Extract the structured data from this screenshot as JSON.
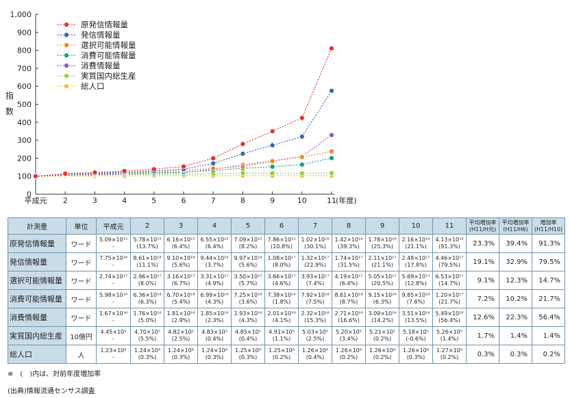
{
  "colors": {
    "header_bg": "#c9dde9",
    "border": "#6f93a8",
    "series": [
      "#e0362c",
      "#3f65b3",
      "#e68a2e",
      "#1f9e7a",
      "#8e5bb5",
      "#9fcf3a",
      "#e8c53a"
    ]
  },
  "chart_data": {
    "type": "line",
    "ylabel": "指数",
    "x_unit": "(年度)",
    "categories": [
      "平成元",
      "2",
      "3",
      "4",
      "5",
      "6",
      "7",
      "8",
      "9",
      "10",
      "11"
    ],
    "ylim": [
      0,
      1000
    ],
    "yticks": [
      "0",
      "100",
      "200",
      "300",
      "400",
      "500",
      "600",
      "700",
      "800",
      "900",
      "1,000"
    ],
    "grid": false,
    "legend_position": "top-left",
    "series": [
      {
        "name": "原発信情報量",
        "color": "#e0362c",
        "values": [
          100,
          114,
          121,
          129,
          139,
          154,
          200,
          279,
          350,
          424,
          811
        ]
      },
      {
        "name": "発信情報量",
        "color": "#3f65b3",
        "values": [
          100,
          111,
          117,
          122,
          129,
          139,
          171,
          225,
          272,
          320,
          575
        ]
      },
      {
        "name": "選択可能情報量",
        "color": "#e68a2e",
        "values": [
          100,
          108,
          115,
          121,
          128,
          134,
          143,
          153,
          184,
          207,
          238
        ]
      },
      {
        "name": "消費可能情報量",
        "color": "#1f9e7a",
        "values": [
          100,
          106,
          112,
          117,
          121,
          124,
          132,
          144,
          153,
          165,
          201
        ]
      },
      {
        "name": "消費情報量",
        "color": "#8e5bb5",
        "values": [
          100,
          105,
          108,
          111,
          116,
          120,
          139,
          162,
          185,
          210,
          329
        ]
      },
      {
        "name": "実質国内総生産",
        "color": "#9fcf3a",
        "values": [
          100,
          106,
          108,
          109,
          109,
          110,
          113,
          117,
          117,
          116,
          118
        ]
      },
      {
        "name": "総人口",
        "color": "#e8c53a",
        "values": [
          100,
          100,
          101,
          101,
          102,
          102,
          102,
          103,
          103,
          103,
          103
        ]
      }
    ]
  },
  "table": {
    "headers": [
      "計測量",
      "単位",
      "平成元",
      "2",
      "3",
      "4",
      "5",
      "6",
      "7",
      "8",
      "9",
      "10",
      "11"
    ],
    "rate_headers": [
      {
        "line1": "平均増加率",
        "line2": "(H11/H元)"
      },
      {
        "line1": "平均増加率",
        "line2": "(H11/H6)"
      },
      {
        "line1": "増加率",
        "line2": "(H11/H10)"
      }
    ],
    "rows": [
      {
        "label": "原発信情報量",
        "unit": "ワード",
        "cells": [
          [
            "5.09×10¹⁵",
            "-"
          ],
          [
            "5.78×10¹⁵",
            "(13.7%)"
          ],
          [
            "6.16×10¹⁵",
            "(6.4%)"
          ],
          [
            "6.55×10¹⁵",
            "(6.4%)"
          ],
          [
            "7.09×10¹⁵",
            "(8.2%)"
          ],
          [
            "7.86×10¹⁵",
            "(10.8%)"
          ],
          [
            "1.02×10¹⁶",
            "(30.1%)"
          ],
          [
            "1.42×10¹⁶",
            "(39.3%)"
          ],
          [
            "1.78×10¹⁶",
            "(25.3%)"
          ],
          [
            "2.16×10¹⁶",
            "(21.1%)"
          ],
          [
            "4.13×10¹⁶",
            "(91.3%)"
          ]
        ],
        "rates": [
          "23.3%",
          "39.4%",
          "91.3%"
        ]
      },
      {
        "label": "発信情報量",
        "unit": "ワード",
        "cells": [
          [
            "7.75×10¹⁶",
            "-"
          ],
          [
            "8.61×10¹⁶",
            "(11.1%)"
          ],
          [
            "9.10×10¹⁶",
            "(5.6%)"
          ],
          [
            "9.44×10¹⁶",
            "(3.7%)"
          ],
          [
            "9.97×10¹⁶",
            "(5.6%)"
          ],
          [
            "1.08×10¹⁷",
            "(8.0%)"
          ],
          [
            "1.32×10¹⁷",
            "(22.9%)"
          ],
          [
            "1.74×10¹⁷",
            "(31.5%)"
          ],
          [
            "2.11×10¹⁷",
            "(21.1%)"
          ],
          [
            "2.48×10¹⁷",
            "(17.8%)"
          ],
          [
            "4.46×10¹⁷",
            "(79.5%)"
          ]
        ],
        "rates": [
          "19.1%",
          "32.9%",
          "79.5%"
        ]
      },
      {
        "label": "選択可能情報量",
        "unit": "ワード",
        "cells": [
          [
            "2.74×10¹⁷",
            "-"
          ],
          [
            "2.96×10¹⁷",
            "(8.0%)"
          ],
          [
            "3.16×10¹⁷",
            "(6.7%)"
          ],
          [
            "3.31×10¹⁷",
            "(4.9%)"
          ],
          [
            "3.50×10¹⁷",
            "(5.7%)"
          ],
          [
            "3.66×10¹⁷",
            "(4.6%)"
          ],
          [
            "3.93×10¹⁷",
            "(7.4%)"
          ],
          [
            "4.19×10¹⁷",
            "(6.4%)"
          ],
          [
            "5.05×10¹⁷",
            "(20.5%)"
          ],
          [
            "5.69×10¹⁷",
            "(12.8%)"
          ],
          [
            "6.53×10¹⁷",
            "(14.7%)"
          ]
        ],
        "rates": [
          "9.1%",
          "12.3%",
          "14.7%"
        ]
      },
      {
        "label": "消費可能情報量",
        "unit": "ワード",
        "cells": [
          [
            "5.98×10¹⁶",
            "-"
          ],
          [
            "6.36×10¹⁶",
            "(6.3%)"
          ],
          [
            "6.70×10¹⁶",
            "(5.4%)"
          ],
          [
            "6.99×10¹⁶",
            "(4.3%)"
          ],
          [
            "7.25×10¹⁶",
            "(3.6%)"
          ],
          [
            "7.38×10¹⁶",
            "(1.8%)"
          ],
          [
            "7.92×10¹⁶",
            "(7.5%)"
          ],
          [
            "8.61×10¹⁶",
            "(8.7%)"
          ],
          [
            "9.15×10¹⁶",
            "(6.3%)"
          ],
          [
            "9.85×10¹⁶",
            "(7.6%)"
          ],
          [
            "1.20×10¹⁷",
            "(21.7%)"
          ]
        ],
        "rates": [
          "7.2%",
          "10.2%",
          "21.7%"
        ]
      },
      {
        "label": "消費情報量",
        "unit": "ワード",
        "cells": [
          [
            "1.67×10¹⁶",
            "-"
          ],
          [
            "1.76×10¹⁶",
            "(5.0%)"
          ],
          [
            "1.81×10¹⁶",
            "(2.9%)"
          ],
          [
            "1.85×10¹⁶",
            "(2.3%)"
          ],
          [
            "1.93×10¹⁶",
            "(4.3%)"
          ],
          [
            "2.01×10¹⁶",
            "(4.1%)"
          ],
          [
            "2.32×10¹⁶",
            "(15.3%)"
          ],
          [
            "2.71×10¹⁶",
            "(16.6%)"
          ],
          [
            "3.09×10¹⁶",
            "(14.2%)"
          ],
          [
            "3.51×10¹⁶",
            "(13.5%)"
          ],
          [
            "5.49×10¹⁶",
            "(56.4%)"
          ]
        ],
        "rates": [
          "12.6%",
          "22.3%",
          "56.4%"
        ]
      },
      {
        "label": "実質国内総生産",
        "unit": "10億円",
        "cells": [
          [
            "4.45×10⁵",
            "-"
          ],
          [
            "4.70×10⁵",
            "(5.5%)"
          ],
          [
            "4.82×10⁵",
            "(2.5%)"
          ],
          [
            "4.83×10⁵",
            "(0.4%)"
          ],
          [
            "4.85×10⁵",
            "(0.4%)"
          ],
          [
            "4.91×10⁵",
            "(1.1%)"
          ],
          [
            "5.03×10⁵",
            "(2.5%)"
          ],
          [
            "5.20×10⁵",
            "(3.4%)"
          ],
          [
            "5.21×10⁵",
            "(0.2%)"
          ],
          [
            "5.18×10⁵",
            "(-0.6%)"
          ],
          [
            "5.26×10⁵",
            "(1.4%)"
          ]
        ],
        "rates": [
          "1.7%",
          "1.4%",
          "1.4%"
        ]
      },
      {
        "label": "総人口",
        "unit": "人",
        "cells": [
          [
            "1.23×10⁸",
            "-"
          ],
          [
            "1.24×10⁸",
            "(0.3%)"
          ],
          [
            "1.24×10⁸",
            "(0.3%)"
          ],
          [
            "1.24×10⁸",
            "(0.3%)"
          ],
          [
            "1.25×10⁸",
            "(0.3%)"
          ],
          [
            "1.25×10⁸",
            "(0.2%)"
          ],
          [
            "1.26×10⁸",
            "(0.4%)"
          ],
          [
            "1.26×10⁸",
            "(0.2%)"
          ],
          [
            "1.26×10⁸",
            "(0.2%)"
          ],
          [
            "1.26×10⁸",
            "(0.3%)"
          ],
          [
            "1.27×10⁸",
            "(0.2%)"
          ]
        ],
        "rates": [
          "0.3%",
          "0.3%",
          "0.2%"
        ]
      }
    ]
  },
  "notes": {
    "note1": "※　(　)内は、対前年度増加率",
    "source": "(出典)情報流通センサス調査"
  }
}
